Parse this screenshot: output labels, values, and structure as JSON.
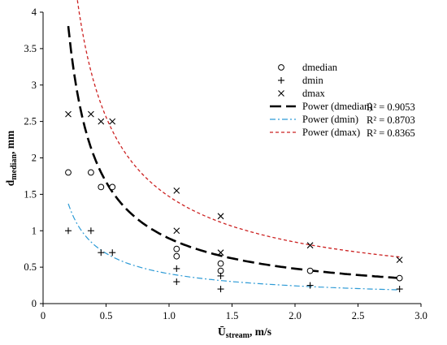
{
  "chart_data": {
    "type": "scatter",
    "xlabel_main": "Ū",
    "xlabel_sub": "stream",
    "xlabel_unit": ", m/s",
    "ylabel_main": "d",
    "ylabel_sub": "median",
    "ylabel_unit": ", mm",
    "xlim": [
      0,
      3.0
    ],
    "ylim": [
      0,
      4
    ],
    "x_ticks": [
      "0",
      "0.5",
      "1.0",
      "1.5",
      "2.0",
      "2.5",
      "3.0"
    ],
    "x_tick_values": [
      0,
      0.5,
      1.0,
      1.5,
      2.0,
      2.5,
      3.0
    ],
    "y_ticks": [
      "0",
      "0.5",
      "1",
      "1.5",
      "2",
      "2.5",
      "3",
      "3.5",
      "4"
    ],
    "y_tick_values": [
      0,
      0.5,
      1,
      1.5,
      2,
      2.5,
      3,
      3.5,
      4
    ],
    "grid": false,
    "legend_position": "top-right",
    "series": [
      {
        "name": "dmedian",
        "marker": "circle",
        "color": "#000000",
        "x": [
          0.2,
          0.38,
          0.46,
          0.55,
          1.06,
          1.06,
          1.41,
          1.41,
          2.12,
          2.83
        ],
        "y": [
          1.8,
          1.8,
          1.6,
          1.6,
          0.75,
          0.65,
          0.55,
          0.45,
          0.45,
          0.35
        ]
      },
      {
        "name": "dmin",
        "marker": "plus",
        "color": "#000000",
        "x": [
          0.2,
          0.38,
          0.46,
          0.55,
          1.06,
          1.06,
          1.41,
          1.41,
          2.12,
          2.83
        ],
        "y": [
          1.0,
          1.0,
          0.7,
          0.7,
          0.48,
          0.3,
          0.38,
          0.2,
          0.25,
          0.2
        ]
      },
      {
        "name": "dmax",
        "marker": "cross",
        "color": "#000000",
        "x": [
          0.2,
          0.38,
          0.46,
          0.55,
          1.06,
          1.06,
          1.41,
          1.41,
          2.12,
          2.83
        ],
        "y": [
          2.6,
          2.6,
          2.5,
          2.5,
          1.55,
          1.0,
          1.2,
          0.7,
          0.8,
          0.6
        ]
      }
    ],
    "trendlines": [
      {
        "name": "Power (dmedian)",
        "r2": "R² = 0.9053",
        "color": "#000000",
        "dash": "14,6",
        "width": 2.6,
        "a": 0.895,
        "b": -0.9,
        "x_range": [
          0.2,
          2.83
        ]
      },
      {
        "name": "Power (dmin)",
        "r2": "R² = 0.8703",
        "color": "#2e9bd6",
        "dash": "7,3,2,3",
        "width": 1.2,
        "a": 0.41,
        "b": -0.75,
        "x_range": [
          0.2,
          2.83
        ]
      },
      {
        "name": "Power (dmax)",
        "r2": "R² = 0.8365",
        "color": "#cc2222",
        "dash": "4,3",
        "width": 1.3,
        "a": 1.47,
        "b": -0.8,
        "x_range": [
          0.2,
          2.83
        ]
      }
    ]
  }
}
